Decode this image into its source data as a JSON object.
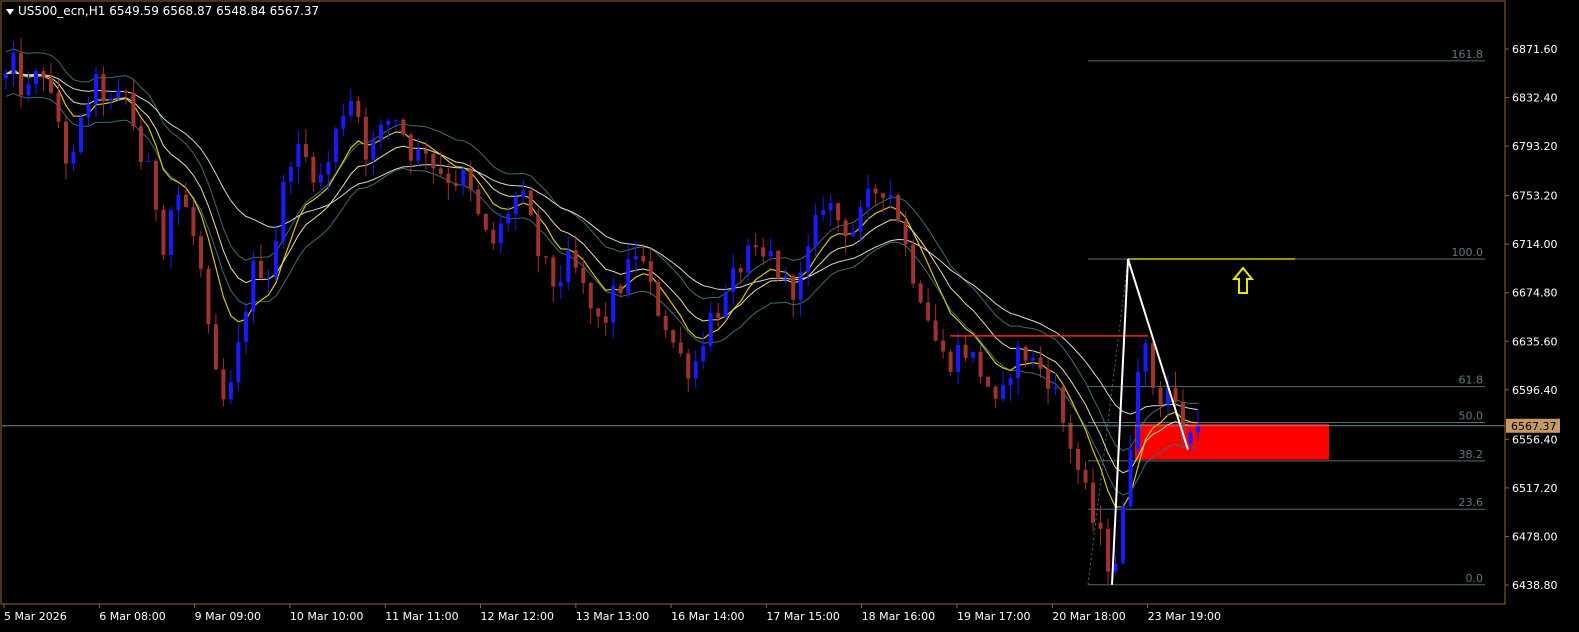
{
  "header": {
    "symbol_timeframe": "US500_ecn,H1",
    "open": "6549.59",
    "high": "6568.87",
    "low": "6548.84",
    "close": "6567.37"
  },
  "chart_data": {
    "type": "candlestick",
    "y_ticks": [
      6871.6,
      6832.4,
      6793.2,
      6753.2,
      6714.0,
      6674.8,
      6635.6,
      6596.4,
      6556.4,
      6517.2,
      6478.0,
      6438.8
    ],
    "y_tick_labels": [
      "6871.60",
      "6832.40",
      "6793.20",
      "6753.20",
      "6714.00",
      "6674.80",
      "6635.60",
      "6596.40",
      "6556.40",
      "6517.20",
      "6478.00",
      "6438.80"
    ],
    "ylim": [
      6432.0,
      6920.0
    ],
    "x_tick_labels": [
      "5 Mar 2026",
      "6 Mar 08:00",
      "9 Mar 09:00",
      "10 Mar 10:00",
      "11 Mar 11:00",
      "12 Mar 12:00",
      "13 Mar 13:00",
      "16 Mar 14:00",
      "17 Mar 15:00",
      "18 Mar 16:00",
      "19 Mar 17:00",
      "20 Mar 18:00",
      "23 Mar 19:00"
    ],
    "bars_visible": 160,
    "current_price": "6567.37",
    "price_path": [
      6848,
      6858,
      6842,
      6835,
      6845,
      6860,
      6830,
      6822,
      6790,
      6770,
      6800,
      6825,
      6840,
      6842,
      6830,
      6820,
      6838,
      6832,
      6800,
      6775,
      6770,
      6740,
      6710,
      6750,
      6755,
      6740,
      6718,
      6690,
      6640,
      6605,
      6585,
      6592,
      6622,
      6660,
      6690,
      6700,
      6685,
      6710,
      6740,
      6785,
      6790,
      6785,
      6780,
      6770,
      6765,
      6790,
      6810,
      6830,
      6835,
      6815,
      6785,
      6795,
      6805,
      6815,
      6818,
      6805,
      6790,
      6785,
      6795,
      6780,
      6775,
      6770,
      6765,
      6770,
      6760,
      6740,
      6725,
      6712,
      6718,
      6735,
      6748,
      6752,
      6745,
      6720,
      6700,
      6690,
      6680,
      6690,
      6700,
      6690,
      6675,
      6660,
      6650,
      6655,
      6670,
      6680,
      6690,
      6710,
      6700,
      6680,
      6665,
      6655,
      6640,
      6625,
      6620,
      6610,
      6630,
      6650,
      6660,
      6665,
      6672,
      6690,
      6700,
      6705,
      6700,
      6700,
      6705,
      6690,
      6680,
      6680,
      6685,
      6705,
      6725,
      6750,
      6745,
      6735,
      6730,
      6725,
      6730,
      6745,
      6755,
      6762,
      6760,
      6750,
      6725,
      6700,
      6685,
      6670,
      6650,
      6630,
      6620,
      6622,
      6630,
      6628,
      6620,
      6610,
      6600,
      6580,
      6590,
      6615,
      6625,
      6625,
      6620,
      6615,
      6610,
      6600,
      6575,
      6560,
      6540,
      6520,
      6500,
      6480,
      6470,
      6448,
      6470,
      6510,
      6580,
      6640,
      6620,
      6595,
      6590,
      6600,
      6580,
      6555,
      6560,
      6567
    ],
    "ema_fast_label": "yellow MA",
    "fibonacci": {
      "levels": [
        {
          "label": "161.8",
          "price": 6862.0
        },
        {
          "label": "100.0",
          "price": 6702.0
        },
        {
          "label": "61.8",
          "price": 6599.0
        },
        {
          "label": "50.0",
          "price": 6570.0
        },
        {
          "label": "38.2",
          "price": 6539.0
        },
        {
          "label": "23.6",
          "price": 6500.0
        },
        {
          "label": "0.0",
          "price": 6439.0
        }
      ]
    },
    "resistance_line_price": 6640.0,
    "high_line_price": 6702.0,
    "zone": {
      "top": 6569.0,
      "bottom": 6540.0
    },
    "arrow_direction": "up"
  },
  "colors": {
    "background": "#000000",
    "bull": "#1a1aff",
    "bear": "#a0322f",
    "axis_text": "#ffffff",
    "fib_line": "#4f6f73",
    "fib_text": "#5c7a80",
    "price_line": "#6e8a92",
    "price_tag_bg": "#c79a63",
    "zone": "#ff0000",
    "high_line": "#c8c800",
    "resistance_line": "#ff2020",
    "arrow": "#e8e800",
    "frame": "#8a6a2a"
  }
}
